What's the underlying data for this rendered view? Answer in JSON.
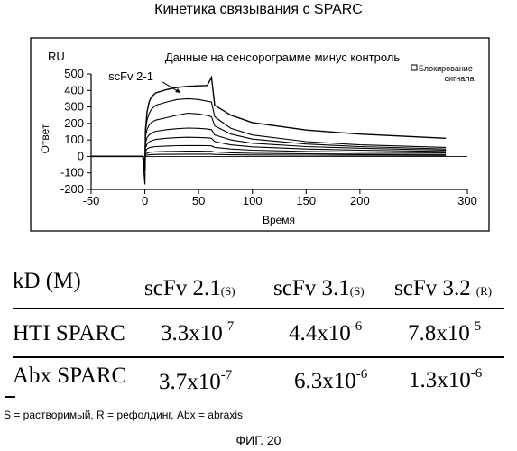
{
  "figure": {
    "title": "Кинетика связывания с SPARC",
    "label": "ФИГ. 20",
    "footnote": "S = растворимый, R = рефолдинг, Abx = abraxis"
  },
  "chart_data": {
    "type": "line",
    "title": "Данные на сенсорограмме минус контроль",
    "unit_label": "RU",
    "xlabel": "Время",
    "ylabel": "Ответ",
    "xlim": [
      -50,
      300
    ],
    "ylim": [
      -200,
      500
    ],
    "xticks": [
      -50,
      0,
      50,
      100,
      150,
      200,
      300
    ],
    "yticks": [
      500,
      400,
      300,
      200,
      100,
      0,
      -100,
      -200
    ],
    "grid": false,
    "legend": {
      "position": "top-right",
      "entries": [
        "Блокирование сигнала"
      ]
    },
    "annotations": [
      {
        "text": "scFv 2-1",
        "x": 8,
        "y": 440
      }
    ],
    "series": [
      {
        "x": [
          -50,
          -2,
          0,
          0.5,
          2,
          4,
          6,
          10,
          20,
          30,
          40,
          50,
          58,
          62,
          65,
          80,
          100,
          150,
          200,
          280
        ],
        "y": [
          0,
          0,
          -90,
          160,
          270,
          330,
          360,
          385,
          405,
          418,
          425,
          428,
          430,
          480,
          310,
          250,
          205,
          160,
          135,
          110
        ]
      },
      {
        "x": [
          -50,
          -2,
          0,
          0.5,
          2,
          4,
          6,
          10,
          20,
          30,
          40,
          50,
          58,
          62,
          65,
          80,
          100,
          150,
          200,
          280
        ],
        "y": [
          0,
          0,
          -70,
          150,
          220,
          260,
          285,
          310,
          330,
          345,
          350,
          345,
          335,
          330,
          240,
          170,
          130,
          90,
          70,
          55
        ]
      },
      {
        "x": [
          -50,
          -2,
          0,
          0.5,
          2,
          4,
          6,
          10,
          20,
          30,
          40,
          50,
          58,
          62,
          65,
          80,
          100,
          150,
          200,
          280
        ],
        "y": [
          0,
          0,
          -60,
          120,
          165,
          190,
          205,
          220,
          235,
          250,
          262,
          258,
          248,
          240,
          185,
          135,
          105,
          75,
          60,
          45
        ]
      },
      {
        "x": [
          -50,
          -2,
          0,
          0.5,
          2,
          4,
          6,
          10,
          20,
          30,
          40,
          50,
          58,
          62,
          65,
          80,
          100,
          150,
          200,
          280
        ],
        "y": [
          0,
          0,
          -50,
          80,
          115,
          130,
          140,
          152,
          162,
          168,
          172,
          170,
          166,
          162,
          130,
          100,
          80,
          60,
          50,
          38
        ]
      },
      {
        "x": [
          -50,
          -2,
          0,
          0.5,
          2,
          4,
          6,
          10,
          20,
          30,
          40,
          50,
          58,
          62,
          65,
          80,
          100,
          150,
          200,
          280
        ],
        "y": [
          0,
          0,
          -40,
          50,
          75,
          88,
          95,
          103,
          110,
          114,
          116,
          115,
          113,
          110,
          90,
          70,
          58,
          45,
          38,
          30
        ]
      },
      {
        "x": [
          -50,
          -2,
          0,
          0.5,
          2,
          4,
          6,
          10,
          20,
          30,
          40,
          50,
          58,
          62,
          65,
          80,
          100,
          150,
          200,
          280
        ],
        "y": [
          0,
          0,
          -30,
          30,
          45,
          52,
          56,
          60,
          63,
          65,
          66,
          66,
          65,
          64,
          55,
          45,
          38,
          30,
          26,
          22
        ]
      },
      {
        "x": [
          -50,
          -2,
          0,
          0.5,
          2,
          4,
          6,
          10,
          20,
          30,
          40,
          50,
          58,
          62,
          65,
          80,
          100,
          150,
          200,
          280
        ],
        "y": [
          0,
          0,
          -20,
          12,
          20,
          24,
          26,
          28,
          30,
          31,
          32,
          32,
          31,
          31,
          27,
          22,
          19,
          16,
          14,
          12
        ]
      },
      {
        "x": [
          -50,
          -2,
          0,
          0.5,
          2,
          4,
          6,
          10,
          20,
          30,
          40,
          50,
          58,
          62,
          65,
          80,
          100,
          150,
          200,
          280
        ],
        "y": [
          0,
          0,
          -170,
          5,
          8,
          10,
          11,
          12,
          13,
          13,
          14,
          14,
          14,
          14,
          12,
          10,
          9,
          8,
          7,
          6
        ]
      }
    ]
  },
  "kd_table": {
    "header": [
      "kD (M)",
      "scFv 2.1",
      "(S)",
      "scFv 3.1",
      "(S)",
      "scFv 3.2",
      "(R)"
    ],
    "rows": [
      {
        "label": "HTI SPARC",
        "values": [
          {
            "mantissa": "3.3x10",
            "exponent": "-7"
          },
          {
            "mantissa": "4.4x10",
            "exponent": "-6"
          },
          {
            "mantissa": "7.8x10",
            "exponent": "-5"
          }
        ]
      },
      {
        "label": "Abx SPARC",
        "values": [
          {
            "mantissa": "3.7x10",
            "exponent": "-7"
          },
          {
            "mantissa": "6.3x10",
            "exponent": "-6"
          },
          {
            "mantissa": "1.3x10",
            "exponent": "-6"
          }
        ]
      }
    ]
  }
}
